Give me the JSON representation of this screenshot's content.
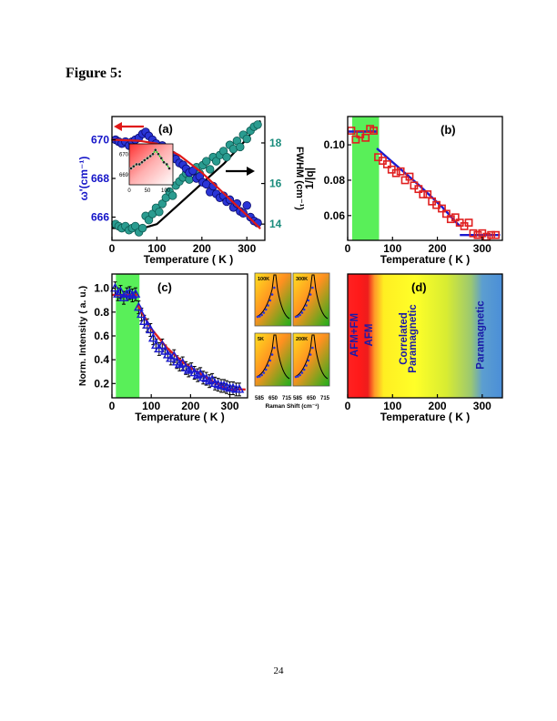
{
  "page": {
    "figure_title": "Figure 5:",
    "page_number": "24"
  },
  "chart_data": [
    {
      "id": "a",
      "type": "scatter",
      "panel_label": "(a)",
      "xlabel": "Temperature ( K )",
      "ylabel": "ω'(cm⁻¹)",
      "y2label": "FWHM (cm⁻¹)",
      "xlim": [
        0,
        340
      ],
      "ylim": [
        664.8,
        671.2
      ],
      "y2lim": [
        13.2,
        19.3
      ],
      "xticks": [
        0,
        100,
        200,
        300
      ],
      "yticks": [
        666,
        668,
        670
      ],
      "y2ticks": [
        14,
        16,
        18
      ],
      "colors": {
        "left_axis": "#1414c8",
        "right_axis": "#1a8c7c",
        "freq_marker": "#2a35d6",
        "fwhm_marker": "#2a9c90",
        "freq_fit": "#e01818",
        "fwhm_fit": "#000000"
      },
      "series": [
        {
          "name": "",
          "axis": "left",
          "x": [
            8,
            15,
            22,
            30,
            38,
            45,
            52,
            60,
            68,
            75,
            82,
            90,
            98,
            105,
            112,
            120,
            128,
            135,
            142,
            150,
            158,
            165,
            172,
            180,
            188,
            195,
            202,
            210,
            218,
            225,
            232,
            240,
            248,
            255,
            262,
            270,
            278,
            285,
            292,
            300,
            308,
            316,
            324
          ],
          "y": [
            670.0,
            669.9,
            669.8,
            669.9,
            669.7,
            669.9,
            670.0,
            670.1,
            670.3,
            670.4,
            670.2,
            670.0,
            669.8,
            669.6,
            669.7,
            669.5,
            669.3,
            669.2,
            669.0,
            668.8,
            668.7,
            668.5,
            668.3,
            668.4,
            668.0,
            668.1,
            667.8,
            667.7,
            667.3,
            667.6,
            667.2,
            667.0,
            667.1,
            666.8,
            666.9,
            666.5,
            666.7,
            666.3,
            666.2,
            666.6,
            666.0,
            665.8,
            665.7
          ]
        },
        {
          "name": "",
          "axis": "right",
          "x": [
            8,
            15,
            22,
            30,
            38,
            45,
            52,
            60,
            68,
            75,
            82,
            90,
            98,
            105,
            112,
            120,
            128,
            135,
            142,
            150,
            158,
            165,
            172,
            180,
            188,
            195,
            202,
            210,
            218,
            225,
            232,
            240,
            248,
            255,
            262,
            270,
            278,
            285,
            292,
            300,
            308,
            316,
            324
          ],
          "y": [
            14.0,
            13.9,
            13.8,
            13.9,
            13.7,
            13.8,
            13.9,
            13.6,
            13.8,
            14.4,
            14.2,
            14.5,
            14.8,
            14.6,
            15.0,
            15.3,
            15.6,
            15.4,
            15.9,
            16.1,
            16.3,
            16.5,
            16.2,
            16.6,
            16.8,
            16.5,
            16.9,
            17.1,
            16.7,
            17.3,
            17.1,
            17.4,
            17.6,
            17.3,
            17.9,
            17.7,
            18.1,
            17.8,
            18.4,
            18.2,
            18.6,
            18.8,
            18.9
          ]
        }
      ],
      "fits": [
        {
          "axis": "left",
          "x": [
            0,
            60,
            100,
            150,
            200,
            250,
            300,
            330
          ],
          "y": [
            670.0,
            669.95,
            669.8,
            669.2,
            668.3,
            667.2,
            666.1,
            665.4
          ]
        },
        {
          "axis": "right",
          "x": [
            0,
            70,
            100,
            150,
            200,
            250,
            300,
            330
          ],
          "y": [
            13.8,
            13.8,
            14.0,
            15.0,
            16.0,
            17.0,
            18.2,
            19.1
          ]
        }
      ],
      "inset": {
        "xlim": [
          0,
          120
        ],
        "ylim": [
          668.5,
          670.5
        ],
        "xticks": [
          0,
          50,
          100
        ],
        "yticks": [
          669,
          670
        ],
        "x": [
          5,
          12,
          20,
          28,
          35,
          42,
          50,
          58,
          65,
          72,
          80,
          88,
          95,
          103,
          110
        ],
        "y": [
          669.3,
          669.4,
          669.5,
          669.5,
          669.6,
          669.7,
          669.8,
          669.9,
          670.0,
          670.2,
          670.0,
          669.8,
          669.6,
          669.5,
          669.3
        ],
        "fit_color": "#1fdc1f"
      }
    },
    {
      "id": "b",
      "type": "scatter",
      "panel_label": "(b)",
      "xlabel": "Temperature ( K )",
      "ylabel": "1/|q|",
      "xlim": [
        0,
        345
      ],
      "ylim": [
        0.046,
        0.116
      ],
      "xticks": [
        0,
        100,
        200,
        300
      ],
      "yticks": [
        0.06,
        0.08,
        0.1
      ],
      "colors": {
        "marker": "#e02020",
        "fit": "#1a1ad0",
        "shade": "#3cec3c"
      },
      "shade_x": [
        10,
        70
      ],
      "series": [
        {
          "name": "",
          "x": [
            8,
            18,
            28,
            40,
            50,
            58,
            68,
            78,
            88,
            98,
            108,
            118,
            128,
            138,
            148,
            158,
            168,
            178,
            188,
            198,
            210,
            220,
            230,
            240,
            250,
            260,
            270,
            280,
            290,
            300,
            310,
            320,
            330
          ],
          "y": [
            0.108,
            0.103,
            0.106,
            0.104,
            0.109,
            0.108,
            0.093,
            0.091,
            0.089,
            0.086,
            0.084,
            0.085,
            0.08,
            0.082,
            0.077,
            0.075,
            0.072,
            0.072,
            0.068,
            0.066,
            0.064,
            0.061,
            0.058,
            0.059,
            0.056,
            0.054,
            0.056,
            0.05,
            0.049,
            0.05,
            0.048,
            0.049,
            0.049
          ]
        }
      ],
      "fits": [
        {
          "x": [
            0,
            65
          ],
          "y": [
            0.1075,
            0.1075
          ]
        },
        {
          "x": [
            65,
            110,
            160,
            210,
            250
          ],
          "y": [
            0.098,
            0.088,
            0.077,
            0.065,
            0.054
          ]
        },
        {
          "x": [
            250,
            340
          ],
          "y": [
            0.049,
            0.049
          ]
        }
      ]
    },
    {
      "id": "c",
      "type": "scatter",
      "panel_label": "(c)",
      "xlabel": "Temperature ( K )",
      "ylabel": "Norm. Intensity ( a. u.)",
      "xlim": [
        0,
        345
      ],
      "ylim": [
        0.08,
        1.12
      ],
      "xticks": [
        0,
        100,
        200,
        300
      ],
      "yticks": [
        0.2,
        0.4,
        0.6,
        0.8,
        1.0
      ],
      "colors": {
        "marker": "#1a1ad0",
        "fit": "#e02020",
        "shade": "#3cec3c",
        "error_bar": "#000000"
      },
      "shade_x": [
        10,
        70
      ],
      "series": [
        {
          "name": "",
          "x": [
            8,
            15,
            22,
            30,
            38,
            45,
            52,
            60,
            68,
            75,
            82,
            90,
            98,
            105,
            112,
            120,
            128,
            135,
            142,
            150,
            158,
            165,
            172,
            180,
            188,
            195,
            202,
            210,
            218,
            225,
            232,
            240,
            248,
            255,
            262,
            270,
            278,
            285,
            292,
            300,
            308,
            316,
            324
          ],
          "y": [
            1.0,
            0.95,
            0.97,
            0.92,
            0.95,
            0.96,
            0.94,
            0.95,
            0.84,
            0.78,
            0.72,
            0.69,
            0.65,
            0.58,
            0.52,
            0.49,
            0.52,
            0.47,
            0.44,
            0.41,
            0.43,
            0.38,
            0.36,
            0.37,
            0.33,
            0.31,
            0.32,
            0.29,
            0.27,
            0.28,
            0.25,
            0.24,
            0.22,
            0.23,
            0.2,
            0.19,
            0.18,
            0.18,
            0.17,
            0.16,
            0.16,
            0.15,
            0.15
          ]
        }
      ],
      "fits": [
        {
          "x": [
            0,
            65
          ],
          "y": [
            0.945,
            0.945
          ]
        },
        {
          "x": [
            65,
            100,
            140,
            180,
            220,
            260,
            290
          ],
          "y": [
            0.86,
            0.66,
            0.5,
            0.38,
            0.29,
            0.21,
            0.16
          ]
        },
        {
          "x": [
            290,
            340
          ],
          "y": [
            0.15,
            0.15
          ]
        }
      ],
      "raman_insets": {
        "xlabel": "Raman Shift (cm⁻¹)",
        "xticks": [
          "585",
          "650",
          "715"
        ],
        "panels": [
          {
            "label": "100K"
          },
          {
            "label": "300K"
          },
          {
            "label": "5K"
          },
          {
            "label": "200K"
          }
        ]
      }
    },
    {
      "id": "d",
      "type": "heatmap",
      "panel_label": "(d)",
      "xlabel": "Temperature ( K )",
      "xlim": [
        0,
        345
      ],
      "xticks": [
        0,
        100,
        200,
        300
      ],
      "colors": {
        "label_text": "#1a1aa8"
      },
      "gradient_stops": [
        {
          "t": 0,
          "color": "#ff2222"
        },
        {
          "t": 25,
          "color": "#ff1a1a"
        },
        {
          "t": 45,
          "color": "#ee1c1c"
        },
        {
          "t": 60,
          "color": "#ff9a28"
        },
        {
          "t": 80,
          "color": "#ffee22"
        },
        {
          "t": 150,
          "color": "#ffff28"
        },
        {
          "t": 220,
          "color": "#d8ec32"
        },
        {
          "t": 275,
          "color": "#9cc870"
        },
        {
          "t": 300,
          "color": "#5c9ed0"
        },
        {
          "t": 345,
          "color": "#4a8ed8"
        }
      ],
      "regions": [
        {
          "label": "AFM+FM",
          "x": 22
        },
        {
          "label": "AFM",
          "x": 55
        },
        {
          "label": "Correlated",
          "x": 132
        },
        {
          "label": "Paramagnetic",
          "x": 152
        },
        {
          "label": "Paramagnetic",
          "x": 303
        }
      ]
    }
  ]
}
